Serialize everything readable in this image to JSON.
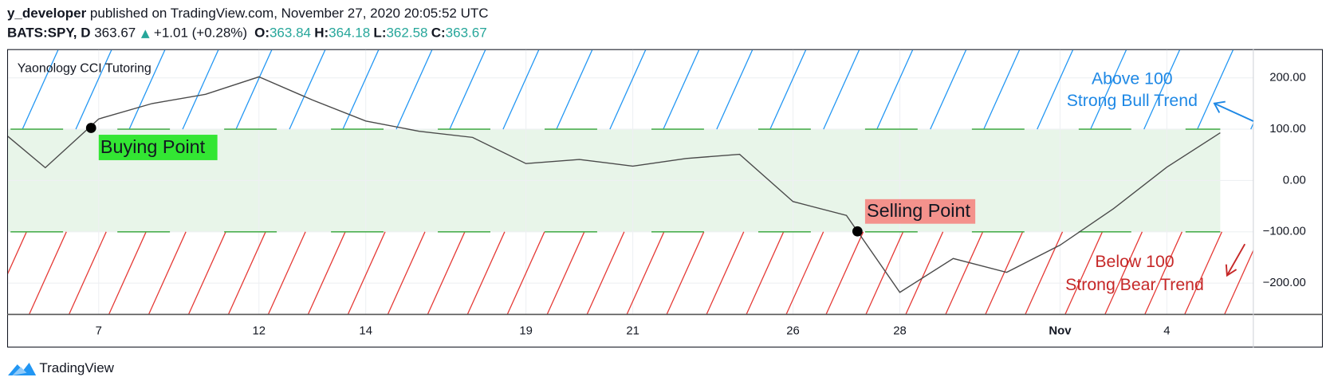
{
  "header": {
    "author": "y_developer",
    "published": "published on TradingView.com, November 27, 2020 20:05:52 UTC",
    "symbol": "BATS:SPY, D",
    "price": "363.67",
    "change": "+1.01 (+0.28%)",
    "ohlc": [
      {
        "label": "O:",
        "value": "363.84"
      },
      {
        "label": "H:",
        "value": "364.18"
      },
      {
        "label": "L:",
        "value": "362.58"
      },
      {
        "label": "C:",
        "value": "363.67"
      }
    ]
  },
  "chart_data": {
    "type": "line",
    "title": "Yaonology CCI Tutoring",
    "categories": [
      null,
      null,
      "7",
      null,
      null,
      "12",
      null,
      "14",
      null,
      null,
      "19",
      null,
      "21",
      null,
      null,
      "26",
      null,
      "28",
      null,
      null,
      "Nov",
      null,
      "4",
      null
    ],
    "values": [
      112,
      25,
      120,
      150,
      168,
      202,
      157,
      116,
      96,
      84,
      33,
      41,
      28,
      43,
      51,
      -41,
      -68,
      -218,
      -152,
      -179,
      -126,
      -55,
      26,
      93
    ],
    "color": "#4a4a4a",
    "ylim": [
      -261,
      256
    ],
    "yticks": [
      {
        "value": 200,
        "label": "200.00"
      },
      {
        "value": 100,
        "label": "100.00"
      },
      {
        "value": 0,
        "label": "0.00"
      },
      {
        "value": -100,
        "label": "−100.00"
      },
      {
        "value": -200,
        "label": "−200.00"
      }
    ],
    "levels": [
      100,
      -100
    ],
    "level_color": "#4caf50",
    "band_color": "#e8f5e9",
    "upper_hatch_color": "#2196f3",
    "lower_hatch_color": "#e53935",
    "annotations": {
      "buy": "Buying Point",
      "sell": "Selling Point",
      "bull": [
        "Above 100",
        "Strong Bull Trend"
      ],
      "bear": [
        "Below 100",
        "Strong Bear Trend"
      ]
    },
    "grid": true
  },
  "footer": {
    "brand": "TradingView"
  }
}
